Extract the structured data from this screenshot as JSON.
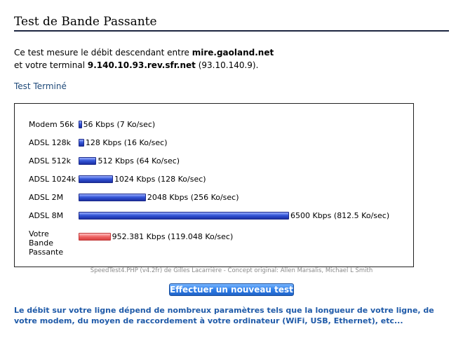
{
  "page": {
    "title": "Test de Bande Passante",
    "intro_prefix": "Ce test mesure le débit descendant entre ",
    "server": "mire.gaoland.net",
    "intro_line2_prefix": "et votre terminal ",
    "host": "9.140.10.93.rev.sfr.net",
    "ip": " (93.10.140.9).",
    "status": "Test Terminé"
  },
  "chart_data": {
    "type": "bar",
    "orientation": "horizontal",
    "categories": [
      "Modem 56k",
      "ADSL 128k",
      "ADSL 512k",
      "ADSL 1024k",
      "ADSL 2M",
      "ADSL 8M",
      "Votre Bande Passante"
    ],
    "values": [
      56,
      128,
      512,
      1024,
      2048,
      6500,
      952.381
    ],
    "value_labels": [
      "56 Kbps (7 Ko/sec)",
      "128 Kbps (16 Ko/sec)",
      "512 Kbps (64 Ko/sec)",
      "1024 Kbps (128 Ko/sec)",
      "2048 Kbps (256 Ko/sec)",
      "6500 Kbps (812.5 Ko/sec)",
      "952.381 Kbps (119.048 Ko/sec)"
    ],
    "colors": [
      "#2d4fd0",
      "#2d4fd0",
      "#2d4fd0",
      "#2d4fd0",
      "#2d4fd0",
      "#2d4fd0",
      "#e85c5c"
    ]
  },
  "footer": {
    "credit": "SpeedTest4.PHP (v4.2fr) de Gilles Lacarrière - Concept original: Allen Marsalis, Michael L Smith",
    "button_label": "Effectuer un nouveau test",
    "note": "Le débit sur votre ligne dépend de nombreux paramètres tels que la longueur de votre ligne, de votre modem, du moyen de raccordement à votre ordinateur (WiFi, USB, Ethernet), etc..."
  }
}
